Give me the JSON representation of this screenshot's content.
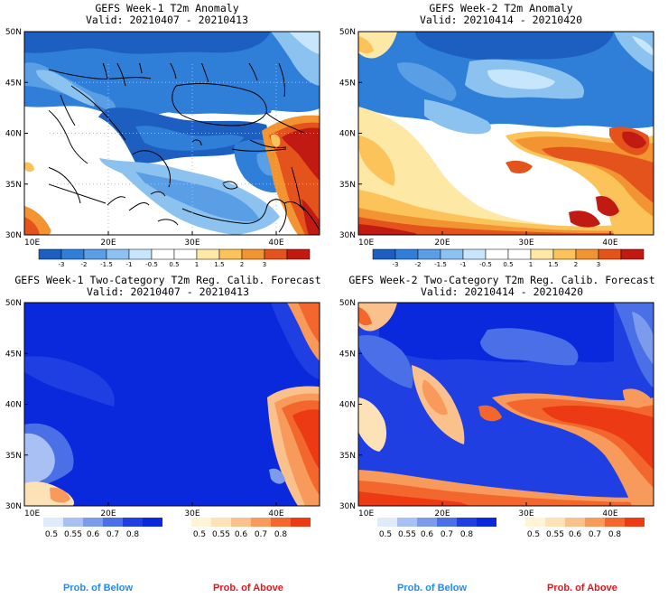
{
  "maps": [
    {
      "id": "p1",
      "title": "GEFS Week-1 T2m Anomaly",
      "valid": "Valid: 20210407 - 20210413"
    },
    {
      "id": "p2",
      "title": "GEFS Week-2 T2m Anomaly",
      "valid": "Valid: 20210414 - 20210420"
    },
    {
      "id": "p3",
      "title": "GEFS Week-1 Two-Category T2m Reg. Calib. Forecast",
      "valid": "Valid: 20210407 - 20210413"
    },
    {
      "id": "p4",
      "title": "GEFS Week-2 Two-Category T2m Reg. Calib. Forecast",
      "valid": "Valid: 20210414 - 20210420"
    }
  ],
  "axes": {
    "lat_labels": [
      "50N",
      "45N",
      "40N",
      "35N",
      "30N"
    ],
    "lon_labels": [
      "10E",
      "20E",
      "30E",
      "40E"
    ]
  },
  "anomaly_colorbar": {
    "labels": [
      "-3",
      "-2",
      "-1.5",
      "-1",
      "-0.5",
      "0.5",
      "1",
      "1.5",
      "2",
      "3"
    ],
    "colors": [
      "#1c5fc0",
      "#2f7fd8",
      "#5a9ee6",
      "#8cc2f0",
      "#c8e6fb",
      "#ffffff",
      "#ffffff",
      "#fde8a6",
      "#fbc35a",
      "#f39432",
      "#e5531c",
      "#c01a12"
    ]
  },
  "probability_colorbars": {
    "below_labels": [
      "0.5",
      "0.55",
      "0.6",
      "0.7",
      "0.8"
    ],
    "above_labels": [
      "0.5",
      "0.55",
      "0.6",
      "0.7",
      "0.8"
    ],
    "below_colors": [
      "#dfeafb",
      "#a8c0f4",
      "#7c9bec",
      "#4a6fe6",
      "#1f3fe3",
      "#0a28dc"
    ],
    "above_colors": [
      "#fff4d6",
      "#fde2b8",
      "#fbc18c",
      "#f89a5c",
      "#f3662d",
      "#ec3a14"
    ]
  },
  "footer": {
    "p3_below": "Prob. of Below",
    "p3_above": "Prob. of Above",
    "p4_below": "Prob. of Below",
    "p4_above": "Prob. of Above",
    "below_color": "#1f8bff",
    "above_color": "#e8141a"
  },
  "colors": {
    "sea": "#e3f6fb",
    "ocean_week1_anom": "#ffffff"
  }
}
